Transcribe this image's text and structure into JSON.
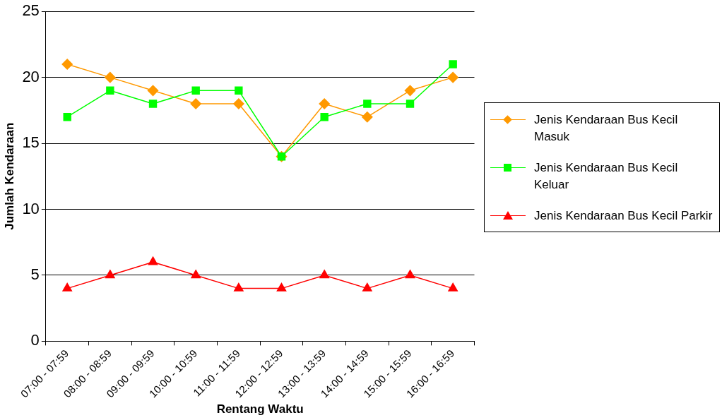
{
  "chart_data": {
    "type": "line",
    "xlabel": "Rentang Waktu",
    "ylabel": "Jumlah Kendaraan",
    "categories": [
      "07:00 - 07:59",
      "08:00 - 08:59",
      "09:00 - 09:59",
      "10:00 - 10:59",
      "11:00 - 11:59",
      "12:00 - 12:59",
      "13:00 - 13:59",
      "14:00 - 14:59",
      "15:00 - 15:59",
      "16:00 - 16:59"
    ],
    "series": [
      {
        "name": "Jenis Kendaraan Bus Kecil Masuk",
        "color": "#ff9900",
        "marker": "diamond",
        "values": [
          21,
          20,
          19,
          18,
          18,
          14,
          18,
          17,
          19,
          20
        ]
      },
      {
        "name": "Jenis Kendaraan Bus Kecil Keluar",
        "color": "#00ff00",
        "marker": "square",
        "values": [
          17,
          19,
          18,
          19,
          19,
          14,
          17,
          18,
          18,
          21
        ]
      },
      {
        "name": "Jenis Kendaraan Bus Kecil Parkir",
        "color": "#ff0000",
        "marker": "triangle",
        "values": [
          4,
          5,
          6,
          5,
          4,
          4,
          5,
          4,
          5,
          4
        ]
      }
    ],
    "ylim": [
      0,
      25
    ],
    "yticks": [
      0,
      5,
      10,
      15,
      20,
      25
    ],
    "grid": "y",
    "legend": "right",
    "line_style": "solid"
  }
}
